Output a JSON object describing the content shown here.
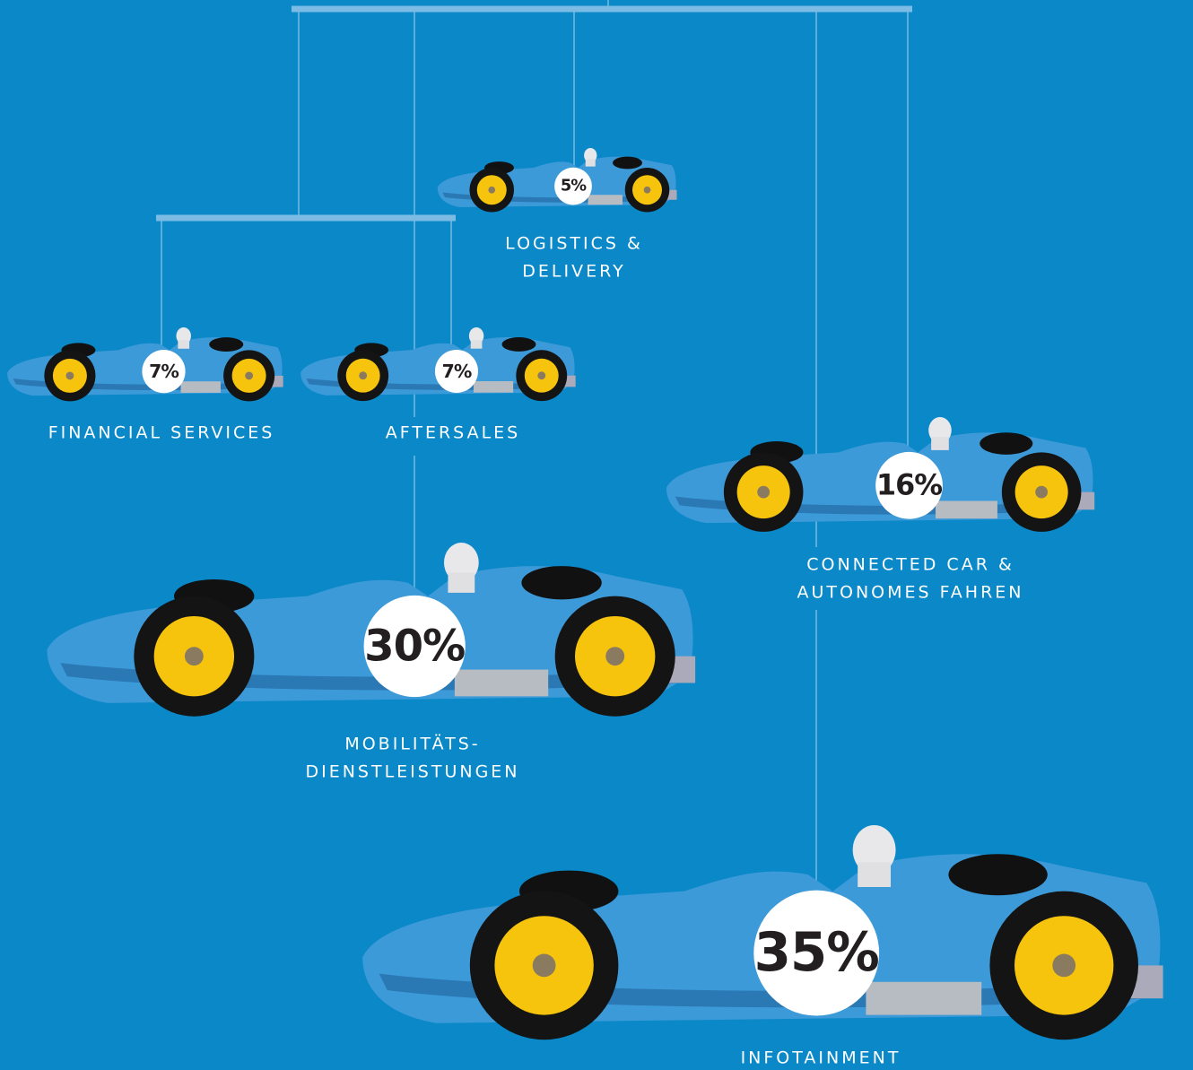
{
  "items": [
    {
      "label": [
        "LOGISTICS &",
        "DELIVERY"
      ],
      "share": "5%"
    },
    {
      "label": [
        "FINANCIAL SERVICES"
      ],
      "share": "7%"
    },
    {
      "label": [
        "AFTERSALES"
      ],
      "share": "7%"
    },
    {
      "label": [
        "CONNECTED CAR &",
        "AUTONOMES FAHREN"
      ],
      "share": "16%"
    },
    {
      "label": [
        "MOBILITÄTS-",
        "DIENSTLEISTUNGEN"
      ],
      "share": "30%"
    },
    {
      "label": [
        "INFOTAINMENT"
      ],
      "share": "35%"
    }
  ]
}
